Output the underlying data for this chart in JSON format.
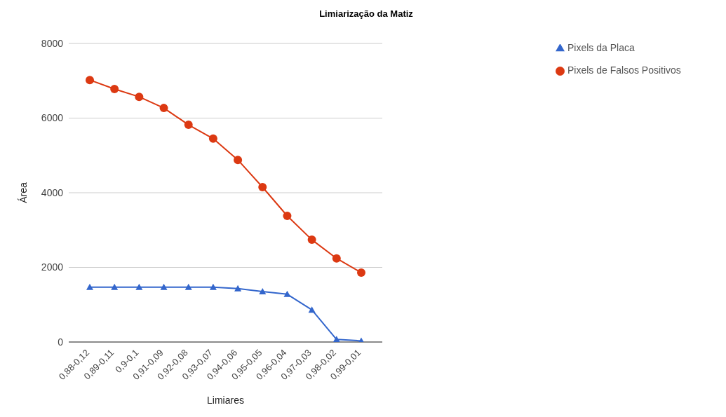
{
  "chart_data": {
    "type": "line",
    "title": "Limiarização da Matiz",
    "xlabel": "Limiares",
    "ylabel": "Área",
    "categories": [
      "0,88-0,12",
      "0,89-0,11",
      "0,9-0,1",
      "0,91-0,09",
      "0,92-0,08",
      "0,93-0,07",
      "0,94-0,06",
      "0,95-0,05",
      "0,96-0,04",
      "0,97-0,03",
      "0,98-0,02",
      "0,99-0,01"
    ],
    "series": [
      {
        "name": "Pixels da Placa",
        "color": "#3366cc",
        "marker": "triangle",
        "values": [
          1470,
          1470,
          1470,
          1470,
          1470,
          1470,
          1430,
          1350,
          1280,
          860,
          70,
          30
        ]
      },
      {
        "name": "Pixels de Falsos Positivos",
        "color": "#dc3912",
        "marker": "circle",
        "values": [
          7020,
          6780,
          6570,
          6270,
          5820,
          5450,
          4880,
          4150,
          3380,
          2740,
          2240,
          1860
        ]
      }
    ],
    "ylim": [
      0,
      8000
    ],
    "yticks": [
      0,
      2000,
      4000,
      6000,
      8000
    ],
    "grid": "y",
    "legend": "top right",
    "line_style": "solid"
  }
}
